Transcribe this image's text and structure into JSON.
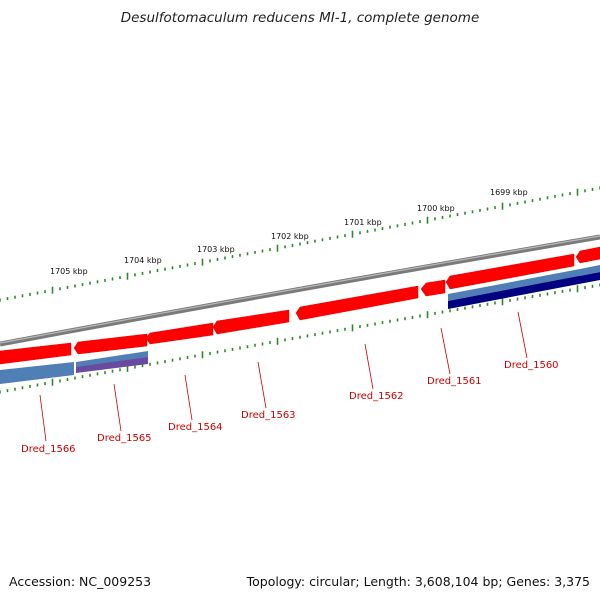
{
  "title": "Desulfotomaculum reducens MI-1, complete genome",
  "accession": "Accession: NC_009253",
  "summary": "Topology: circular; Length: 3,608,104 bp; Genes: 3,375",
  "colors": {
    "backbone": "#7a7a7a",
    "cds_forward": "#ff0000",
    "cds_forward_dark": "#d40000",
    "cds_reverse_a": "#4f7fb5",
    "cds_reverse_b": "#6a4aa0",
    "cds_reverse_c": "#000080",
    "ticks": "#2a8a2a",
    "label_text": "#cc0000"
  },
  "kbp_ticks": [
    "1705 kbp",
    "1704 kbp",
    "1703 kbp",
    "1702 kbp",
    "1701 kbp",
    "1700 kbp",
    "1699 kbp"
  ],
  "genes": [
    "Dred_1566",
    "Dred_1565",
    "Dred_1564",
    "Dred_1563",
    "Dred_1562",
    "Dred_1561",
    "Dred_1560"
  ]
}
